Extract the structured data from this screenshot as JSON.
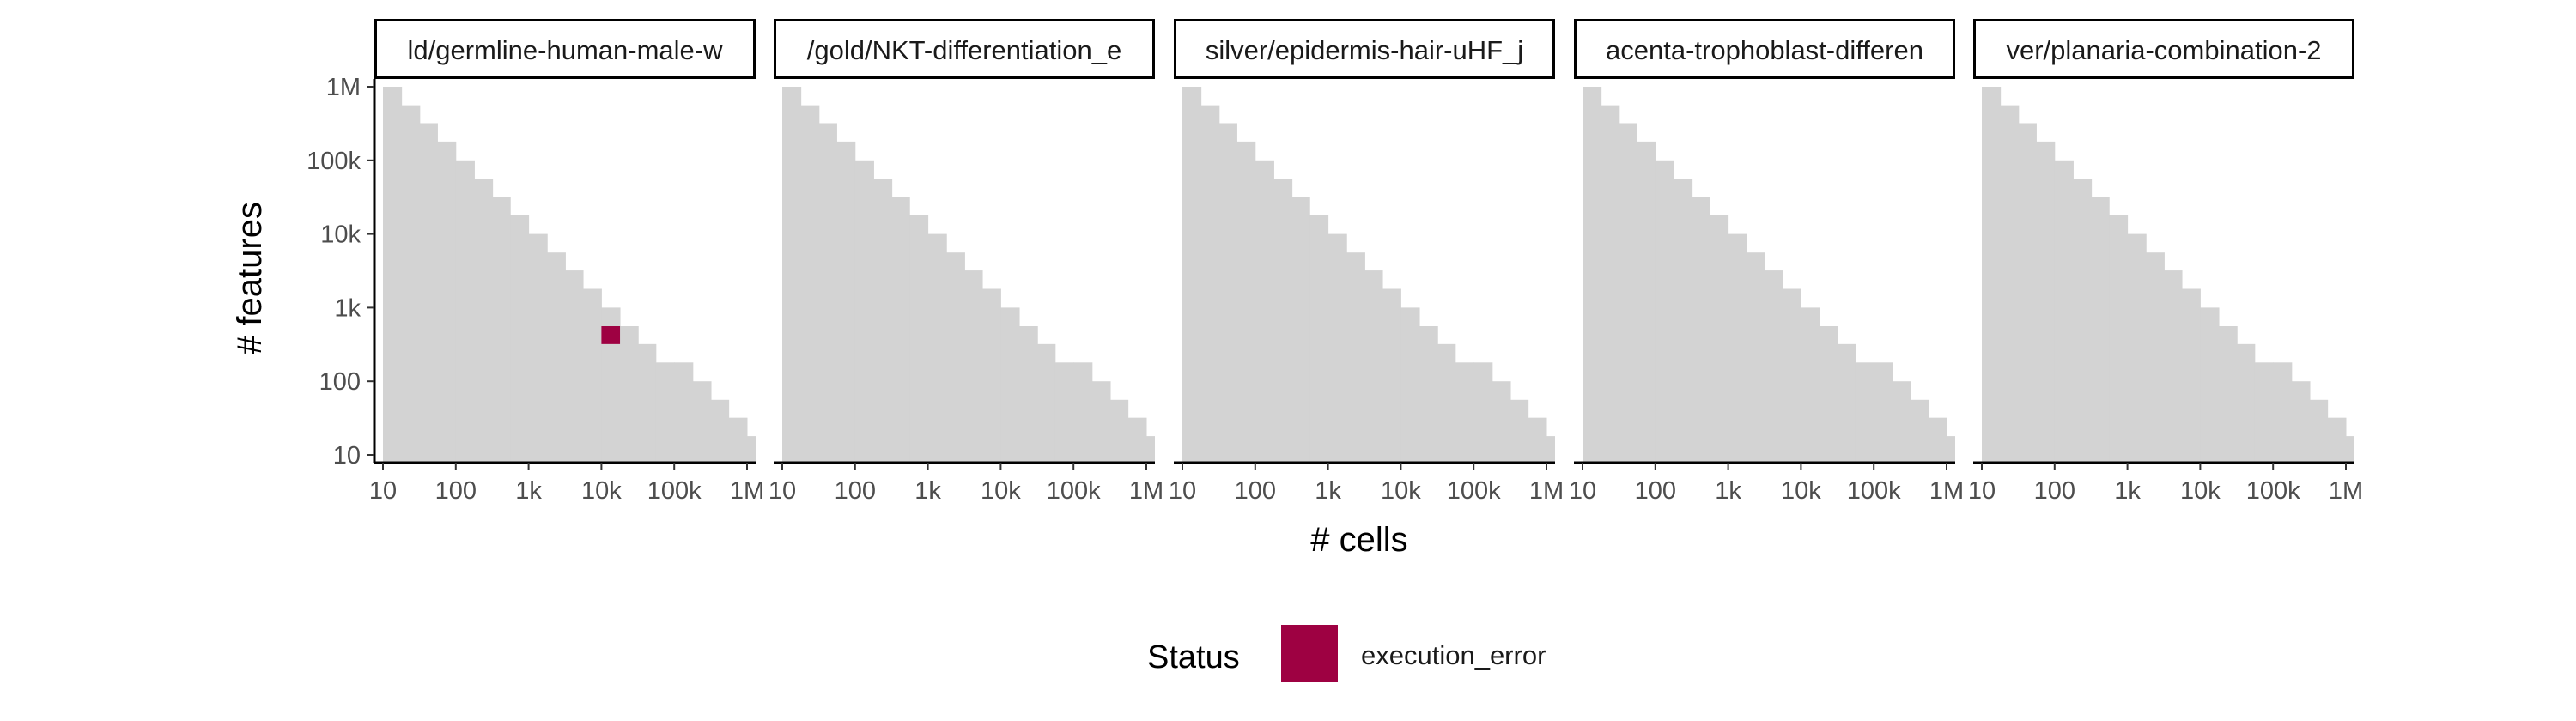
{
  "chart_data": {
    "type": "heatmap",
    "xlabel": "# cells",
    "ylabel": "# features",
    "x_scale": "log10",
    "y_scale": "log10",
    "xlim": [
      10,
      1000000
    ],
    "ylim": [
      10,
      1000000
    ],
    "x_ticks": [
      10,
      100,
      1000,
      10000,
      100000,
      1000000
    ],
    "x_tick_labels": [
      "10",
      "100",
      "1k",
      "10k",
      "100k",
      "1M"
    ],
    "y_ticks": [
      10,
      100,
      1000,
      10000,
      100000,
      1000000
    ],
    "y_tick_labels": [
      "10",
      "100",
      "1k",
      "10k",
      "100k",
      "1M"
    ],
    "background_region": {
      "color": "#d3d3d3",
      "description_of_boundary": "log10(max features) steps down as log10(cells) increases",
      "steps": [
        {
          "x_from": 10,
          "x_to": 18,
          "y_top": 1000000
        },
        {
          "x_from": 18,
          "x_to": 32,
          "y_top": 560000
        },
        {
          "x_from": 32,
          "x_to": 56,
          "y_top": 320000
        },
        {
          "x_from": 56,
          "x_to": 100,
          "y_top": 180000
        },
        {
          "x_from": 100,
          "x_to": 180,
          "y_top": 100000
        },
        {
          "x_from": 180,
          "x_to": 320,
          "y_top": 56000
        },
        {
          "x_from": 320,
          "x_to": 560,
          "y_top": 32000
        },
        {
          "x_from": 560,
          "x_to": 1000,
          "y_top": 18000
        },
        {
          "x_from": 1000,
          "x_to": 1800,
          "y_top": 10000
        },
        {
          "x_from": 1800,
          "x_to": 3200,
          "y_top": 5600
        },
        {
          "x_from": 3200,
          "x_to": 5600,
          "y_top": 3200
        },
        {
          "x_from": 5600,
          "x_to": 10000,
          "y_top": 1800
        },
        {
          "x_from": 10000,
          "x_to": 18000,
          "y_top": 1000
        },
        {
          "x_from": 18000,
          "x_to": 32000,
          "y_top": 560
        },
        {
          "x_from": 32000,
          "x_to": 56000,
          "y_top": 320
        },
        {
          "x_from": 56000,
          "x_to": 100000,
          "y_top": 180
        },
        {
          "x_from": 100000,
          "x_to": 180000,
          "y_top": 180
        },
        {
          "x_from": 180000,
          "x_to": 320000,
          "y_top": 100
        },
        {
          "x_from": 320000,
          "x_to": 560000,
          "y_top": 56
        },
        {
          "x_from": 560000,
          "x_to": 1000000,
          "y_top": 32
        },
        {
          "x_from": 1000000,
          "x_to": 1800000,
          "y_top": 18
        }
      ]
    },
    "panels": [
      {
        "title": "ld/germline-human-male-w",
        "points": [
          {
            "x_from": 10000,
            "x_to": 18000,
            "y_from": 320,
            "y_to": 560,
            "status": "execution_error"
          }
        ]
      },
      {
        "title": "/gold/NKT-differentiation_e",
        "points": []
      },
      {
        "title": "silver/epidermis-hair-uHF_j",
        "points": []
      },
      {
        "title": "acenta-trophoblast-differen",
        "points": []
      },
      {
        "title": "ver/planaria-combination-2",
        "points": []
      }
    ],
    "legend": {
      "title": "Status",
      "position": "bottom",
      "entries": [
        {
          "label": "execution_error",
          "color": "#9e0142"
        }
      ]
    },
    "grid": false
  }
}
